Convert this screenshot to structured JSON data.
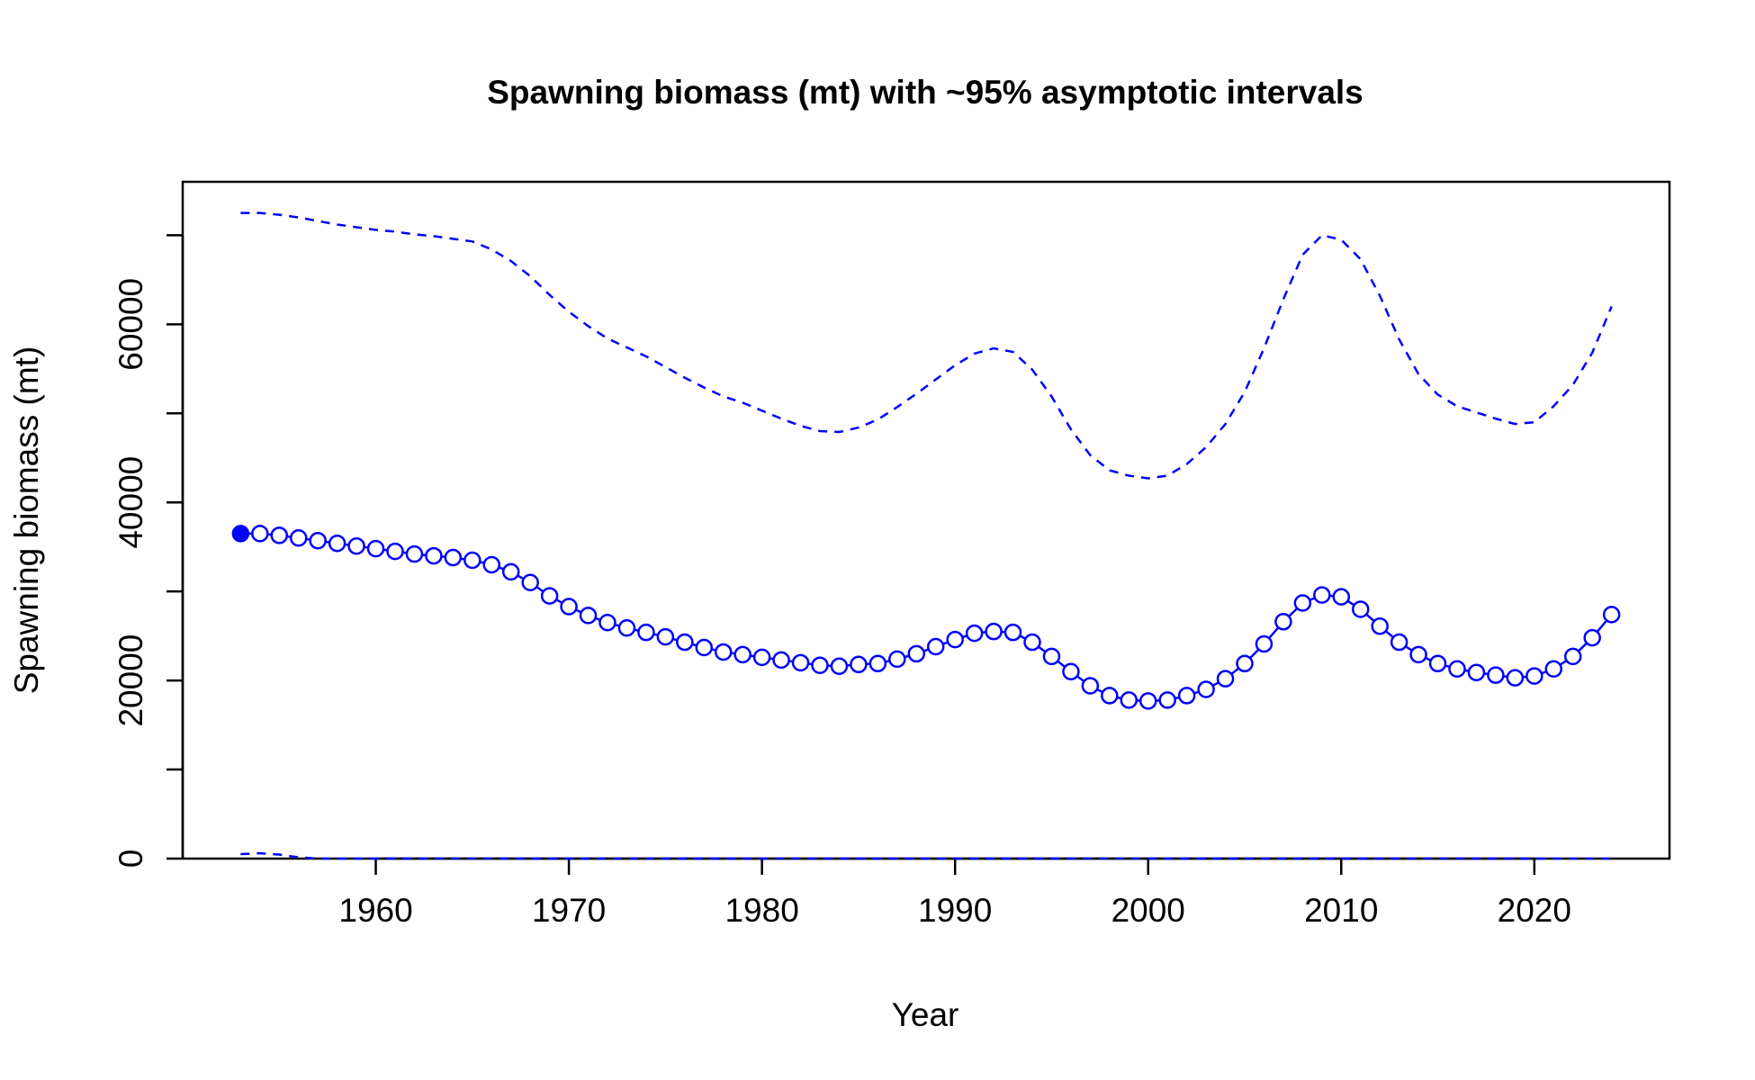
{
  "chart_data": {
    "type": "line",
    "title": "Spawning biomass (mt) with ~95% asymptotic intervals",
    "xlabel": "Year",
    "ylabel": "Spawning biomass (mt)",
    "xlim": [
      1950,
      2027
    ],
    "ylim": [
      0,
      76000
    ],
    "x_ticks": [
      1960,
      1970,
      1980,
      1990,
      2000,
      2010,
      2020
    ],
    "y_ticks": [
      0,
      10000,
      20000,
      30000,
      40000,
      50000,
      60000,
      70000
    ],
    "y_tick_labels": [
      {
        "value": 0,
        "label": "0"
      },
      {
        "value": 20000,
        "label": "20000"
      },
      {
        "value": 40000,
        "label": "40000"
      },
      {
        "value": 60000,
        "label": "60000"
      }
    ],
    "grid": false,
    "color": "#0000ff",
    "x": [
      1953,
      1954,
      1955,
      1956,
      1957,
      1958,
      1959,
      1960,
      1961,
      1962,
      1963,
      1964,
      1965,
      1966,
      1967,
      1968,
      1969,
      1970,
      1971,
      1972,
      1973,
      1974,
      1975,
      1976,
      1977,
      1978,
      1979,
      1980,
      1981,
      1982,
      1983,
      1984,
      1985,
      1986,
      1987,
      1988,
      1989,
      1990,
      1991,
      1992,
      1993,
      1994,
      1995,
      1996,
      1997,
      1998,
      1999,
      2000,
      2001,
      2002,
      2003,
      2004,
      2005,
      2006,
      2007,
      2008,
      2009,
      2010,
      2011,
      2012,
      2013,
      2014,
      2015,
      2016,
      2017,
      2018,
      2019,
      2020,
      2021,
      2022,
      2023,
      2024
    ],
    "series": [
      {
        "role": "estimate",
        "marker": "open-circle",
        "first_point_filled": true,
        "values": [
          36500,
          36500,
          36300,
          36000,
          35700,
          35400,
          35100,
          34800,
          34500,
          34200,
          34000,
          33800,
          33500,
          33000,
          32200,
          31000,
          29500,
          28300,
          27300,
          26500,
          25900,
          25400,
          24900,
          24300,
          23700,
          23200,
          22900,
          22600,
          22300,
          22000,
          21700,
          21600,
          21800,
          21900,
          22400,
          23000,
          23800,
          24600,
          25300,
          25500,
          25400,
          24300,
          22700,
          21000,
          19400,
          18300,
          17800,
          17700,
          17800,
          18300,
          19000,
          20200,
          21900,
          24100,
          26600,
          28700,
          29600,
          29400,
          28000,
          26100,
          24300,
          22900,
          21900,
          21300,
          20900,
          20600,
          20300,
          20500,
          21300,
          22700,
          24800,
          27400
        ]
      },
      {
        "role": "upper-interval",
        "line": "dashed",
        "values": [
          72500,
          72500,
          72300,
          72000,
          71600,
          71200,
          70900,
          70600,
          70400,
          70100,
          69900,
          69600,
          69300,
          68400,
          67100,
          65400,
          63300,
          61400,
          59800,
          58400,
          57400,
          56400,
          55200,
          54000,
          52900,
          51900,
          51200,
          50300,
          49400,
          48600,
          48000,
          47900,
          48400,
          49300,
          50700,
          52200,
          53800,
          55400,
          56700,
          57300,
          56900,
          54900,
          51900,
          48200,
          45300,
          43600,
          43000,
          42700,
          43000,
          44300,
          46200,
          48800,
          52400,
          57300,
          62800,
          67800,
          70000,
          69500,
          67300,
          63200,
          58300,
          54400,
          52100,
          50800,
          50100,
          49400,
          48800,
          49000,
          50800,
          53200,
          56800,
          62000
        ]
      },
      {
        "role": "lower-interval",
        "line": "dashed",
        "values": [
          500,
          600,
          450,
          150,
          0,
          0,
          0,
          0,
          0,
          0,
          0,
          0,
          0,
          0,
          0,
          0,
          0,
          0,
          0,
          0,
          0,
          0,
          0,
          0,
          0,
          0,
          0,
          0,
          0,
          0,
          0,
          0,
          0,
          0,
          0,
          0,
          0,
          0,
          0,
          0,
          0,
          0,
          0,
          0,
          0,
          0,
          0,
          0,
          0,
          0,
          0,
          0,
          0,
          0,
          0,
          0,
          0,
          0,
          0,
          0,
          0,
          0,
          0,
          0,
          0,
          0,
          0,
          0,
          0,
          0,
          0,
          0
        ]
      }
    ]
  }
}
